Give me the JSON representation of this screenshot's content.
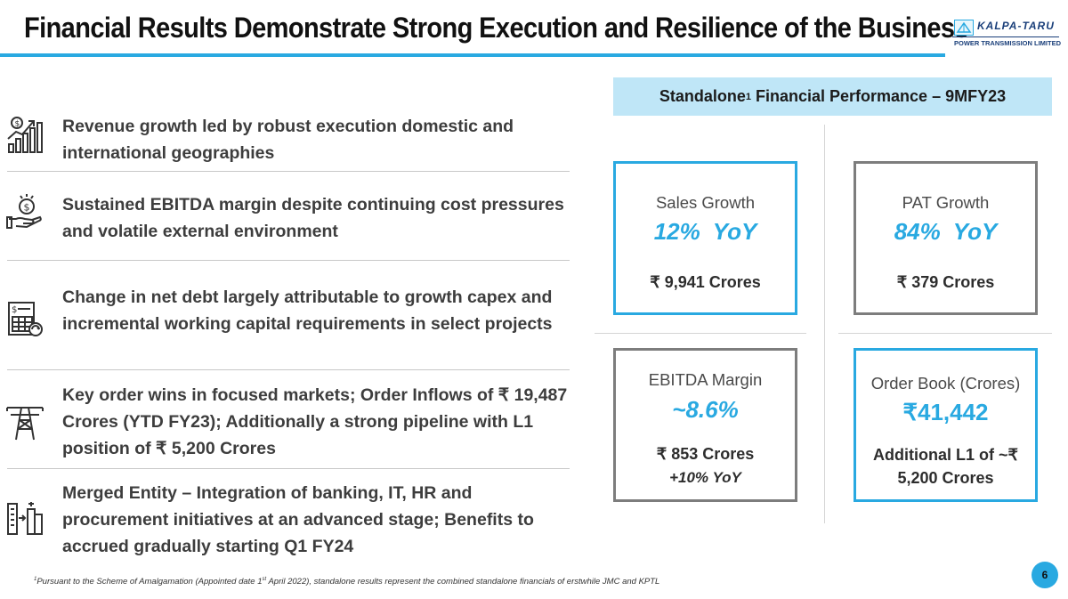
{
  "header": {
    "title": "Financial Results Demonstrate Strong Execution and Resilience of the Business",
    "logo_name": "KALPA-TARU",
    "logo_sub": "POWER TRANSMISSION LIMITED"
  },
  "bullets": [
    {
      "icon": "growth-chart-icon",
      "text": "Revenue growth led by robust execution domestic and international geographies"
    },
    {
      "icon": "money-hand-icon",
      "text": "Sustained EBITDA margin despite continuing cost pressures and volatile external environment"
    },
    {
      "icon": "financial-sheet-icon",
      "text": "Change in net debt largely attributable to growth capex and incremental working capital requirements in select projects"
    },
    {
      "icon": "transmission-tower-icon",
      "text": "Key order wins in focused markets; Order Inflows of ₹ 19,487 Crores (YTD FY23); Additionally a strong pipeline with L1 position of ₹ 5,200 Crores"
    },
    {
      "icon": "merger-buildings-icon",
      "text": "Merged Entity – Integration of banking, IT, HR and procurement initiatives at an advanced stage; Benefits to accrued gradually starting Q1 FY24"
    }
  ],
  "performance": {
    "header_prefix": "Standalone",
    "header_sup": "1",
    "header_suffix": " Financial Performance – 9MFY23",
    "cards": {
      "sales": {
        "label": "Sales Growth",
        "big": "12%  YoY",
        "value": "₹ 9,941 Crores"
      },
      "pat": {
        "label": "PAT Growth",
        "big": "84%  YoY",
        "value": "₹ 379 Crores"
      },
      "ebitda": {
        "label": "EBITDA Margin",
        "big": "~8.6%",
        "value": "₹ 853 Crores",
        "value2": "+10% YoY"
      },
      "order": {
        "label": "Order Book (Crores)",
        "big": "₹41,442",
        "value": "Additional L1 of ~₹",
        "value2": "5,200 Crores"
      }
    }
  },
  "footnote": {
    "sup": "1",
    "text_a": "Pursuant to the Scheme of Amalgamation (Appointed date 1",
    "sup2": "st",
    "text_b": " April 2022), standalone results represent the combined standalone financials of erstwhile JMC and KPTL"
  },
  "page_number": "6",
  "colors": {
    "accent": "#29a9e1",
    "header_fill": "#bfe6f7",
    "card_gray": "#7d7d7d"
  }
}
